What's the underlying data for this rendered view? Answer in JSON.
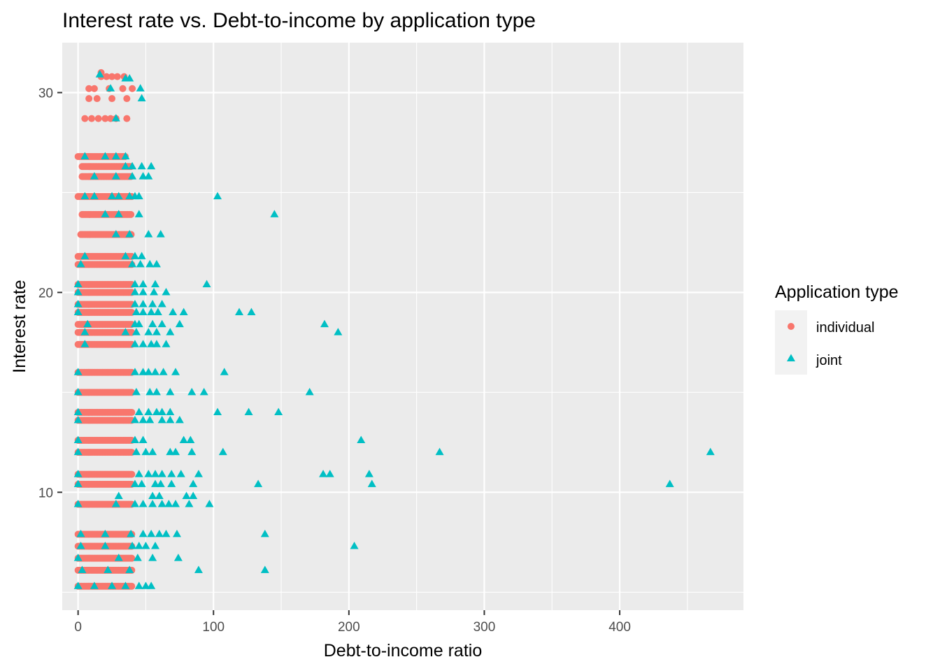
{
  "chart_data": {
    "type": "scatter",
    "title": "Interest rate vs. Debt-to-income by application type",
    "xlabel": "Debt-to-income ratio",
    "ylabel": "Interest rate",
    "xlim": [
      -11.7,
      491.4
    ],
    "ylim": [
      4.1,
      32.5
    ],
    "xticks": [
      0,
      100,
      200,
      300,
      400
    ],
    "xtick_labels": [
      "0",
      "100",
      "200",
      "300",
      "400"
    ],
    "yticks": [
      10,
      20,
      30
    ],
    "ytick_labels": [
      "10",
      "20",
      "30"
    ],
    "grid": true,
    "legend": {
      "title": "Application type",
      "position": "right"
    },
    "colors": {
      "individual": "#F8766D",
      "joint": "#00BFC4",
      "panel": "#EBEBEB",
      "grid": "#FFFFFF"
    },
    "rate_levels": [
      5.3,
      6.1,
      6.7,
      7.3,
      7.9,
      9.4,
      10.4,
      10.9,
      12.0,
      12.6,
      13.6,
      14.0,
      15.0,
      16.0,
      17.4,
      18.0,
      18.4,
      19.0,
      19.4,
      20.0,
      20.4,
      21.4,
      21.8,
      22.9,
      23.9,
      24.8,
      25.8,
      26.3,
      26.8,
      28.7,
      29.7,
      30.2,
      30.8
    ],
    "series": [
      {
        "name": "individual",
        "shape": "circle",
        "bands": [
          {
            "y": 5.3,
            "xmin": 0,
            "xmax": 40
          },
          {
            "y": 6.1,
            "xmin": 0,
            "xmax": 40
          },
          {
            "y": 6.7,
            "xmin": 0,
            "xmax": 40
          },
          {
            "y": 7.3,
            "xmin": 0,
            "xmax": 40
          },
          {
            "y": 7.9,
            "xmin": 0,
            "xmax": 40
          },
          {
            "y": 9.4,
            "xmin": 0,
            "xmax": 40
          },
          {
            "y": 10.4,
            "xmin": 0,
            "xmax": 40
          },
          {
            "y": 10.9,
            "xmin": 0,
            "xmax": 40
          },
          {
            "y": 12.0,
            "xmin": 0,
            "xmax": 40
          },
          {
            "y": 12.6,
            "xmin": 0,
            "xmax": 40
          },
          {
            "y": 13.6,
            "xmin": 0,
            "xmax": 40
          },
          {
            "y": 14.0,
            "xmin": 0,
            "xmax": 40
          },
          {
            "y": 15.0,
            "xmin": 0,
            "xmax": 40
          },
          {
            "y": 16.0,
            "xmin": 0,
            "xmax": 40
          },
          {
            "y": 17.4,
            "xmin": 0,
            "xmax": 40
          },
          {
            "y": 18.0,
            "xmin": 0,
            "xmax": 40
          },
          {
            "y": 18.4,
            "xmin": 0,
            "xmax": 40
          },
          {
            "y": 19.0,
            "xmin": 0,
            "xmax": 40
          },
          {
            "y": 19.4,
            "xmin": 0,
            "xmax": 40
          },
          {
            "y": 20.0,
            "xmin": 0,
            "xmax": 40
          },
          {
            "y": 20.4,
            "xmin": 0,
            "xmax": 40
          },
          {
            "y": 21.4,
            "xmin": 0,
            "xmax": 40
          },
          {
            "y": 21.8,
            "xmin": 0,
            "xmax": 40
          },
          {
            "y": 22.9,
            "xmin": 2,
            "xmax": 40
          },
          {
            "y": 23.9,
            "xmin": 3,
            "xmax": 40
          },
          {
            "y": 24.8,
            "xmin": 0,
            "xmax": 40
          },
          {
            "y": 25.8,
            "xmin": 3,
            "xmax": 40
          },
          {
            "y": 26.3,
            "xmin": 3,
            "xmax": 40
          },
          {
            "y": 26.8,
            "xmin": 0,
            "xmax": 35
          }
        ],
        "points": [
          {
            "x": 5,
            "y": 28.7
          },
          {
            "x": 10,
            "y": 28.7
          },
          {
            "x": 15,
            "y": 28.7
          },
          {
            "x": 20,
            "y": 28.7
          },
          {
            "x": 24,
            "y": 28.7
          },
          {
            "x": 28,
            "y": 28.7
          },
          {
            "x": 36,
            "y": 28.7
          },
          {
            "x": 8,
            "y": 29.7
          },
          {
            "x": 14,
            "y": 29.7
          },
          {
            "x": 25,
            "y": 29.7
          },
          {
            "x": 36,
            "y": 29.7
          },
          {
            "x": 8,
            "y": 30.2
          },
          {
            "x": 12,
            "y": 30.2
          },
          {
            "x": 23,
            "y": 30.2
          },
          {
            "x": 33,
            "y": 30.2
          },
          {
            "x": 40,
            "y": 30.2
          },
          {
            "x": 17,
            "y": 30.8
          },
          {
            "x": 21,
            "y": 30.8
          },
          {
            "x": 25,
            "y": 30.8
          },
          {
            "x": 29,
            "y": 30.8
          },
          {
            "x": 34,
            "y": 30.8
          },
          {
            "x": 17,
            "y": 31.0
          }
        ]
      },
      {
        "name": "joint",
        "shape": "triangle",
        "bands": [],
        "points": [
          {
            "x": 0,
            "y": 5.3
          },
          {
            "x": 12,
            "y": 5.3
          },
          {
            "x": 25,
            "y": 5.3
          },
          {
            "x": 35,
            "y": 5.3
          },
          {
            "x": 45,
            "y": 5.3
          },
          {
            "x": 50,
            "y": 5.3
          },
          {
            "x": 54,
            "y": 5.3
          },
          {
            "x": 3,
            "y": 6.1
          },
          {
            "x": 22,
            "y": 6.1
          },
          {
            "x": 38,
            "y": 6.1
          },
          {
            "x": 89,
            "y": 6.1
          },
          {
            "x": 138,
            "y": 6.1
          },
          {
            "x": 0,
            "y": 6.7
          },
          {
            "x": 30,
            "y": 6.7
          },
          {
            "x": 44,
            "y": 6.7
          },
          {
            "x": 55,
            "y": 6.7
          },
          {
            "x": 74,
            "y": 6.7
          },
          {
            "x": 2,
            "y": 7.3
          },
          {
            "x": 20,
            "y": 7.3
          },
          {
            "x": 40,
            "y": 7.3
          },
          {
            "x": 45,
            "y": 7.3
          },
          {
            "x": 50,
            "y": 7.3
          },
          {
            "x": 57,
            "y": 7.3
          },
          {
            "x": 204,
            "y": 7.3
          },
          {
            "x": 2,
            "y": 7.9
          },
          {
            "x": 20,
            "y": 7.9
          },
          {
            "x": 39,
            "y": 7.9
          },
          {
            "x": 48,
            "y": 7.9
          },
          {
            "x": 54,
            "y": 7.9
          },
          {
            "x": 60,
            "y": 7.9
          },
          {
            "x": 65,
            "y": 7.9
          },
          {
            "x": 73,
            "y": 7.9
          },
          {
            "x": 138,
            "y": 7.9
          },
          {
            "x": 0,
            "y": 9.4
          },
          {
            "x": 28,
            "y": 9.4
          },
          {
            "x": 42,
            "y": 9.4
          },
          {
            "x": 48,
            "y": 9.4
          },
          {
            "x": 55,
            "y": 9.4
          },
          {
            "x": 62,
            "y": 9.4
          },
          {
            "x": 67,
            "y": 9.4
          },
          {
            "x": 72,
            "y": 9.4
          },
          {
            "x": 82,
            "y": 9.4
          },
          {
            "x": 97,
            "y": 9.4
          },
          {
            "x": 30,
            "y": 9.8
          },
          {
            "x": 55,
            "y": 9.8
          },
          {
            "x": 60,
            "y": 9.8
          },
          {
            "x": 80,
            "y": 9.8
          },
          {
            "x": 85,
            "y": 9.8
          },
          {
            "x": 0,
            "y": 10.4
          },
          {
            "x": 42,
            "y": 10.4
          },
          {
            "x": 47,
            "y": 10.4
          },
          {
            "x": 57,
            "y": 10.4
          },
          {
            "x": 61,
            "y": 10.4
          },
          {
            "x": 69,
            "y": 10.4
          },
          {
            "x": 85,
            "y": 10.4
          },
          {
            "x": 133,
            "y": 10.4
          },
          {
            "x": 217,
            "y": 10.4
          },
          {
            "x": 437,
            "y": 10.4
          },
          {
            "x": 0,
            "y": 10.9
          },
          {
            "x": 45,
            "y": 10.9
          },
          {
            "x": 52,
            "y": 10.9
          },
          {
            "x": 57,
            "y": 10.9
          },
          {
            "x": 62,
            "y": 10.9
          },
          {
            "x": 69,
            "y": 10.9
          },
          {
            "x": 76,
            "y": 10.9
          },
          {
            "x": 89,
            "y": 10.9
          },
          {
            "x": 181,
            "y": 10.9
          },
          {
            "x": 186,
            "y": 10.9
          },
          {
            "x": 215,
            "y": 10.9
          },
          {
            "x": 0,
            "y": 12.0
          },
          {
            "x": 43,
            "y": 12.0
          },
          {
            "x": 50,
            "y": 12.0
          },
          {
            "x": 55,
            "y": 12.0
          },
          {
            "x": 68,
            "y": 12.0
          },
          {
            "x": 72,
            "y": 12.0
          },
          {
            "x": 84,
            "y": 12.0
          },
          {
            "x": 107,
            "y": 12.0
          },
          {
            "x": 267,
            "y": 12.0
          },
          {
            "x": 467,
            "y": 12.0
          },
          {
            "x": 0,
            "y": 12.6
          },
          {
            "x": 42,
            "y": 12.6
          },
          {
            "x": 48,
            "y": 12.6
          },
          {
            "x": 78,
            "y": 12.6
          },
          {
            "x": 83,
            "y": 12.6
          },
          {
            "x": 209,
            "y": 12.6
          },
          {
            "x": 0,
            "y": 13.6
          },
          {
            "x": 42,
            "y": 13.6
          },
          {
            "x": 48,
            "y": 13.6
          },
          {
            "x": 53,
            "y": 13.6
          },
          {
            "x": 62,
            "y": 13.6
          },
          {
            "x": 68,
            "y": 13.6
          },
          {
            "x": 75,
            "y": 13.6
          },
          {
            "x": 0,
            "y": 14.0
          },
          {
            "x": 45,
            "y": 14.0
          },
          {
            "x": 52,
            "y": 14.0
          },
          {
            "x": 58,
            "y": 14.0
          },
          {
            "x": 62,
            "y": 14.0
          },
          {
            "x": 68,
            "y": 14.0
          },
          {
            "x": 103,
            "y": 14.0
          },
          {
            "x": 126,
            "y": 14.0
          },
          {
            "x": 148,
            "y": 14.0
          },
          {
            "x": 0,
            "y": 15.0
          },
          {
            "x": 43,
            "y": 15.0
          },
          {
            "x": 53,
            "y": 15.0
          },
          {
            "x": 58,
            "y": 15.0
          },
          {
            "x": 68,
            "y": 15.0
          },
          {
            "x": 84,
            "y": 15.0
          },
          {
            "x": 93,
            "y": 15.0
          },
          {
            "x": 171,
            "y": 15.0
          },
          {
            "x": 0,
            "y": 16.0
          },
          {
            "x": 42,
            "y": 16.0
          },
          {
            "x": 48,
            "y": 16.0
          },
          {
            "x": 52,
            "y": 16.0
          },
          {
            "x": 57,
            "y": 16.0
          },
          {
            "x": 63,
            "y": 16.0
          },
          {
            "x": 72,
            "y": 16.0
          },
          {
            "x": 108,
            "y": 16.0
          },
          {
            "x": 5,
            "y": 17.4
          },
          {
            "x": 42,
            "y": 17.4
          },
          {
            "x": 48,
            "y": 17.4
          },
          {
            "x": 54,
            "y": 17.4
          },
          {
            "x": 58,
            "y": 17.4
          },
          {
            "x": 65,
            "y": 17.4
          },
          {
            "x": 5,
            "y": 18.0
          },
          {
            "x": 35,
            "y": 18.0
          },
          {
            "x": 43,
            "y": 18.0
          },
          {
            "x": 52,
            "y": 18.0
          },
          {
            "x": 58,
            "y": 18.0
          },
          {
            "x": 68,
            "y": 18.0
          },
          {
            "x": 192,
            "y": 18.0
          },
          {
            "x": 7,
            "y": 18.4
          },
          {
            "x": 42,
            "y": 18.4
          },
          {
            "x": 45,
            "y": 18.4
          },
          {
            "x": 55,
            "y": 18.4
          },
          {
            "x": 62,
            "y": 18.4
          },
          {
            "x": 75,
            "y": 18.4
          },
          {
            "x": 182,
            "y": 18.4
          },
          {
            "x": 0,
            "y": 19.0
          },
          {
            "x": 43,
            "y": 19.0
          },
          {
            "x": 48,
            "y": 19.0
          },
          {
            "x": 54,
            "y": 19.0
          },
          {
            "x": 59,
            "y": 19.0
          },
          {
            "x": 70,
            "y": 19.0
          },
          {
            "x": 78,
            "y": 19.0
          },
          {
            "x": 119,
            "y": 19.0
          },
          {
            "x": 128,
            "y": 19.0
          },
          {
            "x": 0,
            "y": 19.4
          },
          {
            "x": 42,
            "y": 19.4
          },
          {
            "x": 48,
            "y": 19.4
          },
          {
            "x": 55,
            "y": 19.4
          },
          {
            "x": 62,
            "y": 19.4
          },
          {
            "x": 0,
            "y": 20.0
          },
          {
            "x": 42,
            "y": 20.0
          },
          {
            "x": 48,
            "y": 20.0
          },
          {
            "x": 56,
            "y": 20.0
          },
          {
            "x": 65,
            "y": 20.0
          },
          {
            "x": 0,
            "y": 20.4
          },
          {
            "x": 42,
            "y": 20.4
          },
          {
            "x": 48,
            "y": 20.4
          },
          {
            "x": 57,
            "y": 20.4
          },
          {
            "x": 95,
            "y": 20.4
          },
          {
            "x": 2,
            "y": 21.4
          },
          {
            "x": 40,
            "y": 21.4
          },
          {
            "x": 46,
            "y": 21.4
          },
          {
            "x": 53,
            "y": 21.4
          },
          {
            "x": 58,
            "y": 21.4
          },
          {
            "x": 5,
            "y": 21.8
          },
          {
            "x": 35,
            "y": 21.8
          },
          {
            "x": 42,
            "y": 21.8
          },
          {
            "x": 47,
            "y": 21.8
          },
          {
            "x": 28,
            "y": 22.9
          },
          {
            "x": 38,
            "y": 22.9
          },
          {
            "x": 52,
            "y": 22.9
          },
          {
            "x": 61,
            "y": 22.9
          },
          {
            "x": 20,
            "y": 23.9
          },
          {
            "x": 30,
            "y": 23.9
          },
          {
            "x": 45,
            "y": 23.9
          },
          {
            "x": 145,
            "y": 23.9
          },
          {
            "x": 5,
            "y": 24.8
          },
          {
            "x": 12,
            "y": 24.8
          },
          {
            "x": 25,
            "y": 24.8
          },
          {
            "x": 30,
            "y": 24.8
          },
          {
            "x": 38,
            "y": 24.8
          },
          {
            "x": 42,
            "y": 24.8
          },
          {
            "x": 45,
            "y": 24.8
          },
          {
            "x": 103,
            "y": 24.8
          },
          {
            "x": 12,
            "y": 25.8
          },
          {
            "x": 28,
            "y": 25.8
          },
          {
            "x": 40,
            "y": 25.8
          },
          {
            "x": 48,
            "y": 25.8
          },
          {
            "x": 52,
            "y": 25.8
          },
          {
            "x": 35,
            "y": 26.3
          },
          {
            "x": 40,
            "y": 26.3
          },
          {
            "x": 47,
            "y": 26.3
          },
          {
            "x": 54,
            "y": 26.3
          },
          {
            "x": 5,
            "y": 26.8
          },
          {
            "x": 20,
            "y": 26.8
          },
          {
            "x": 28,
            "y": 26.8
          },
          {
            "x": 35,
            "y": 26.8
          },
          {
            "x": 28,
            "y": 28.7
          },
          {
            "x": 24,
            "y": 30.2
          },
          {
            "x": 47,
            "y": 29.7
          },
          {
            "x": 46,
            "y": 30.2
          },
          {
            "x": 16,
            "y": 30.9
          },
          {
            "x": 35,
            "y": 30.7
          },
          {
            "x": 38,
            "y": 30.7
          }
        ]
      }
    ]
  }
}
